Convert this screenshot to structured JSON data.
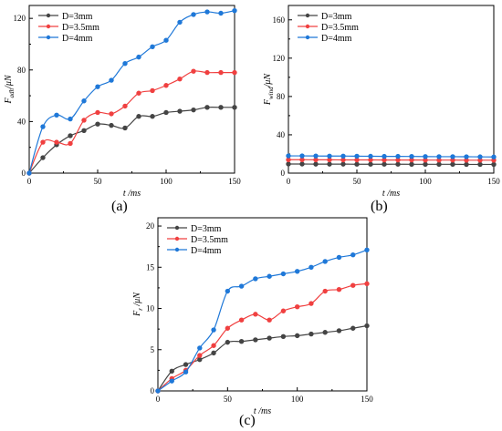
{
  "panels": {
    "a_label": "(a)",
    "b_label": "(b)",
    "c_label": "(c)"
  },
  "chart_data": [
    {
      "type": "line",
      "ylabel_main": "F",
      "ylabel_sub": "adh",
      "ylabel_unit": "/μN",
      "xlabel_main": "t",
      "xlabel_unit": " /ms",
      "xlim": [
        0,
        150
      ],
      "ylim": [
        0,
        130
      ],
      "xticks": [
        0,
        50,
        100,
        150
      ],
      "yticks": [
        0,
        40,
        80,
        120
      ],
      "grid": false,
      "legend_position": "top-left",
      "x": [
        0,
        10,
        20,
        30,
        40,
        50,
        60,
        70,
        80,
        90,
        100,
        110,
        120,
        130,
        140,
        150
      ],
      "series": [
        {
          "name": "D=3mm",
          "color": "#444444",
          "values": [
            0,
            12,
            22,
            29,
            33,
            38,
            37,
            35,
            44,
            44,
            47,
            48,
            49,
            51,
            51,
            51
          ]
        },
        {
          "name": "D=3.5mm",
          "color": "#f04040",
          "values": [
            0,
            24,
            24,
            23,
            41,
            47,
            46,
            52,
            62,
            64,
            68,
            73,
            79,
            78,
            78,
            78
          ]
        },
        {
          "name": "D=4mm",
          "color": "#1f78d8",
          "values": [
            0,
            36,
            45,
            42,
            56,
            67,
            72,
            85,
            90,
            98,
            103,
            117,
            123,
            125,
            124,
            126
          ]
        }
      ]
    },
    {
      "type": "line",
      "ylabel_main": "F",
      "ylabel_sub": "wind",
      "ylabel_unit": "/μN",
      "xlabel_main": "t",
      "xlabel_unit": " /ms",
      "xlim": [
        0,
        150
      ],
      "ylim": [
        0,
        175
      ],
      "xticks": [
        0,
        50,
        100,
        150
      ],
      "yticks": [
        0,
        40,
        80,
        120,
        160
      ],
      "grid": false,
      "legend_position": "top-left",
      "x": [
        0,
        10,
        20,
        30,
        40,
        50,
        60,
        70,
        80,
        90,
        100,
        110,
        120,
        130,
        140,
        150
      ],
      "series": [
        {
          "name": "D=3mm",
          "color": "#444444",
          "values": [
            9.5,
            9.5,
            9.4,
            9.4,
            9.4,
            9.3,
            9.3,
            9.3,
            9.3,
            9.2,
            9.2,
            9.2,
            9.2,
            9.1,
            9.1,
            9.1
          ]
        },
        {
          "name": "D=3.5mm",
          "color": "#f04040",
          "values": [
            14,
            14,
            13.9,
            13.9,
            13.8,
            13.8,
            13.8,
            13.7,
            13.7,
            13.7,
            13.6,
            13.6,
            13.6,
            13.5,
            13.5,
            13.5
          ]
        },
        {
          "name": "D=4mm",
          "color": "#1f78d8",
          "values": [
            18,
            18,
            17.9,
            17.8,
            17.8,
            17.7,
            17.6,
            17.5,
            17.5,
            17.4,
            17.3,
            17.2,
            17.2,
            17.1,
            17.0,
            16.9
          ]
        }
      ]
    },
    {
      "type": "line",
      "ylabel_main": "F",
      "ylabel_sub": "r",
      "ylabel_unit": " /μN",
      "xlabel_main": "t",
      "xlabel_unit": " /ms",
      "xlim": [
        0,
        150
      ],
      "ylim": [
        0,
        21
      ],
      "xticks": [
        0,
        50,
        100,
        150
      ],
      "yticks": [
        0,
        5,
        10,
        15,
        20
      ],
      "grid": false,
      "legend_position": "top-left",
      "x": [
        0,
        10,
        20,
        30,
        40,
        50,
        60,
        70,
        80,
        90,
        100,
        110,
        120,
        130,
        140,
        150
      ],
      "series": [
        {
          "name": "D=3mm",
          "color": "#444444",
          "values": [
            0,
            2.4,
            3.2,
            3.8,
            4.6,
            5.9,
            6.0,
            6.2,
            6.4,
            6.6,
            6.7,
            6.9,
            7.1,
            7.3,
            7.6,
            7.9
          ]
        },
        {
          "name": "D=3.5mm",
          "color": "#f04040",
          "values": [
            0,
            1.5,
            2.5,
            4.3,
            5.5,
            7.6,
            8.6,
            9.3,
            8.6,
            9.7,
            10.2,
            10.6,
            12.1,
            12.3,
            12.8,
            13.0
          ]
        },
        {
          "name": "D=4mm",
          "color": "#1f78d8",
          "values": [
            0,
            1.2,
            2.3,
            5.2,
            7.4,
            12.1,
            12.7,
            13.6,
            13.9,
            14.2,
            14.5,
            15.0,
            15.7,
            16.2,
            16.5,
            17.1
          ]
        }
      ]
    }
  ]
}
